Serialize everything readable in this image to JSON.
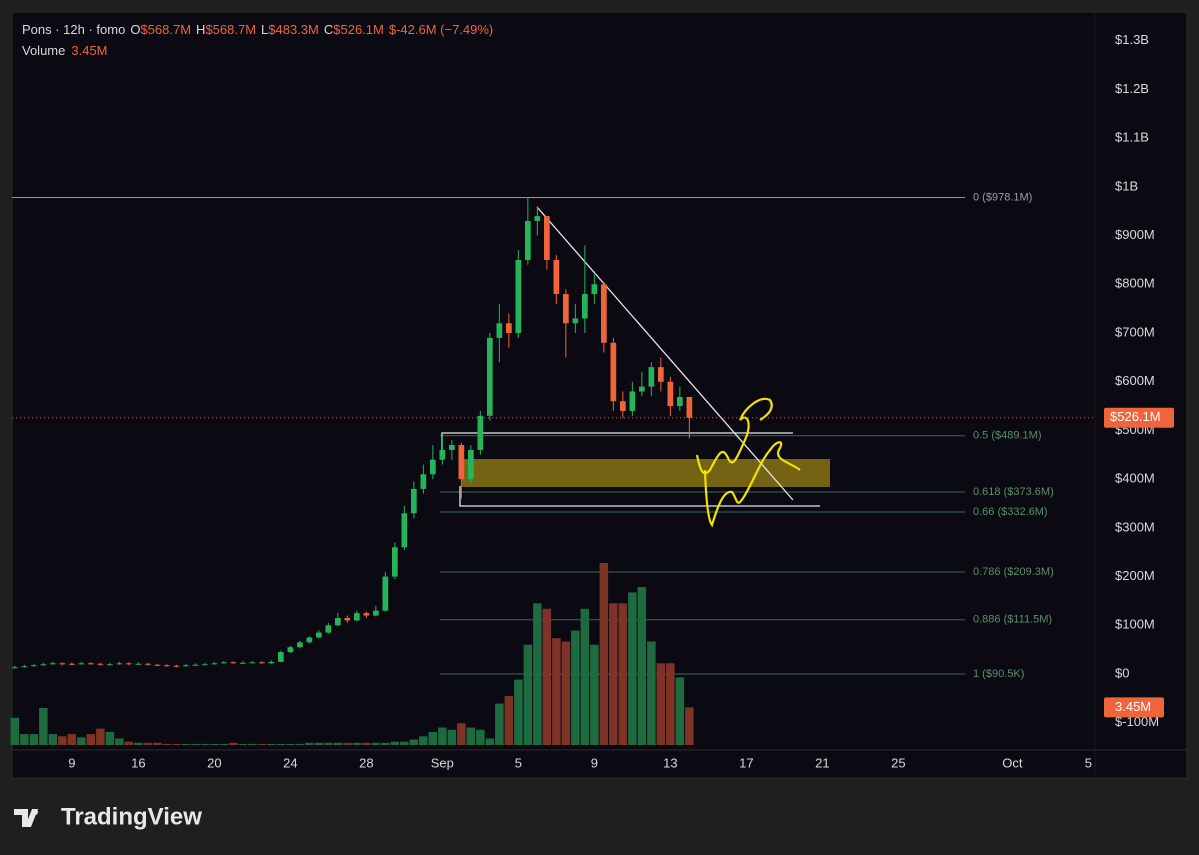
{
  "chart_data": {
    "type": "candlestick",
    "symbol": "Pons · 12h · fomo",
    "legend": {
      "o_label": "O",
      "o": "$568.7M",
      "h_label": "H",
      "h": "$568.7M",
      "l_label": "L",
      "l": "$483.3M",
      "c_label": "C",
      "c": "$526.1M",
      "change": "$-42.6M (−7.49%)",
      "volume_label": "Volume",
      "volume": "3.45M"
    },
    "open": [
      12,
      14,
      16,
      18,
      20,
      22,
      21,
      20,
      22,
      21,
      19,
      20,
      22,
      20,
      21,
      19,
      18,
      17,
      16,
      18,
      19,
      20,
      22,
      24,
      22,
      23,
      24,
      22,
      25,
      45,
      55,
      65,
      75,
      85,
      100,
      115,
      110,
      125,
      120,
      130,
      200,
      260,
      330,
      380,
      410,
      440,
      460,
      470,
      400,
      460,
      530,
      690,
      720,
      700,
      850,
      930,
      940,
      850,
      780,
      720,
      730,
      780,
      800,
      680,
      560,
      540,
      580,
      590,
      630,
      600,
      550,
      568.7
    ],
    "high": [
      17,
      19,
      21,
      23,
      25,
      24,
      24,
      25,
      24,
      23,
      23,
      25,
      24,
      24,
      23,
      21,
      20,
      19,
      21,
      22,
      23,
      25,
      27,
      26,
      26,
      27,
      26,
      28,
      48,
      58,
      68,
      78,
      90,
      105,
      125,
      120,
      130,
      128,
      140,
      210,
      270,
      345,
      395,
      430,
      470,
      490,
      480,
      475,
      470,
      540,
      700,
      760,
      740,
      870,
      978.1,
      960,
      940,
      860,
      790,
      760,
      880,
      820,
      805,
      690,
      580,
      600,
      620,
      640,
      650,
      610,
      590,
      568.7
    ],
    "low": [
      11,
      13,
      15,
      17,
      19,
      18,
      18,
      19,
      19,
      17,
      18,
      19,
      18,
      19,
      17,
      16,
      15,
      14,
      15,
      17,
      18,
      19,
      21,
      21,
      21,
      22,
      21,
      21,
      24,
      43,
      53,
      63,
      73,
      83,
      98,
      105,
      108,
      115,
      118,
      128,
      195,
      255,
      320,
      370,
      400,
      430,
      440,
      360,
      390,
      450,
      520,
      640,
      670,
      690,
      840,
      900,
      830,
      760,
      650,
      700,
      700,
      760,
      660,
      540,
      525,
      530,
      570,
      570,
      580,
      530,
      540,
      483.3
    ],
    "close": [
      14,
      16,
      18,
      20,
      22,
      21,
      20,
      22,
      21,
      19,
      20,
      22,
      20,
      21,
      19,
      18,
      17,
      16,
      18,
      19,
      20,
      22,
      24,
      22,
      23,
      24,
      22,
      25,
      45,
      55,
      65,
      75,
      85,
      100,
      115,
      110,
      125,
      120,
      130,
      200,
      260,
      330,
      380,
      410,
      440,
      460,
      470,
      400,
      460,
      530,
      690,
      720,
      700,
      850,
      930,
      940,
      850,
      780,
      720,
      730,
      780,
      800,
      680,
      560,
      540,
      580,
      590,
      630,
      600,
      550,
      568.7,
      526.1
    ],
    "volume": [
      2.5,
      1,
      1,
      3.4,
      1,
      0.8,
      1,
      0.7,
      1,
      1.5,
      1.2,
      0.6,
      0.3,
      0.2,
      0.2,
      0.2,
      0.1,
      0.1,
      0.1,
      0.1,
      0.1,
      0.1,
      0.1,
      0.2,
      0.1,
      0.1,
      0.1,
      0.1,
      0.1,
      0.1,
      0.1,
      0.2,
      0.2,
      0.2,
      0.2,
      0.2,
      0.2,
      0.2,
      0.2,
      0.2,
      0.3,
      0.3,
      0.5,
      0.8,
      1.2,
      1.6,
      1.4,
      2,
      1.6,
      1.4,
      0.6,
      3.8,
      4.5,
      6,
      9.2,
      13,
      12.5,
      9.8,
      9.5,
      10.5,
      12.5,
      9.2,
      16.7,
      13,
      13,
      14,
      14.5,
      9.5,
      7.5,
      7.5,
      6.2,
      3.45
    ],
    "up_color": "#26b35a",
    "down_color": "#f0643c",
    "vol_up_color": "#1e6b40",
    "vol_down_color": "#7d3325",
    "last_price": {
      "value": 526.1,
      "label": "$526.1M"
    },
    "last_volume": {
      "value": 3.45,
      "label": "3.45M"
    },
    "ylim": [
      -156,
      1359
    ],
    "yticks": [
      {
        "value": 1300,
        "label": "$1.3B"
      },
      {
        "value": 1200,
        "label": "$1.2B"
      },
      {
        "value": 1100,
        "label": "$1.1B"
      },
      {
        "value": 1000,
        "label": "$1B"
      },
      {
        "value": 900,
        "label": "$900M"
      },
      {
        "value": 800,
        "label": "$800M"
      },
      {
        "value": 700,
        "label": "$700M"
      },
      {
        "value": 600,
        "label": "$600M"
      },
      {
        "value": 500,
        "label": "$500M"
      },
      {
        "value": 400,
        "label": "$400M"
      },
      {
        "value": 300,
        "label": "$300M"
      },
      {
        "value": 200,
        "label": "$200M"
      },
      {
        "value": 100,
        "label": "$100M"
      },
      {
        "value": 0,
        "label": "$0"
      },
      {
        "value": -100,
        "label": "$-100M"
      }
    ],
    "xlim": [
      -0.3,
      113.7
    ],
    "xticks": [
      {
        "value": 6,
        "label": "9"
      },
      {
        "value": 13,
        "label": "16"
      },
      {
        "value": 21,
        "label": "20"
      },
      {
        "value": 29,
        "label": "24"
      },
      {
        "value": 37,
        "label": "28"
      },
      {
        "value": 45,
        "label": "Sep"
      },
      {
        "value": 53,
        "label": "5"
      },
      {
        "value": 61,
        "label": "9"
      },
      {
        "value": 69,
        "label": "13"
      },
      {
        "value": 77,
        "label": "17"
      },
      {
        "value": 85,
        "label": "21"
      },
      {
        "value": 93,
        "label": "25"
      },
      {
        "value": 105,
        "label": "Oct"
      },
      {
        "value": 113,
        "label": "5"
      }
    ],
    "fib_levels": [
      {
        "value": 978.1,
        "label": "0 ($978.1M)"
      },
      {
        "value": 489.1,
        "label": "0.5 ($489.1M)"
      },
      {
        "value": 373.6,
        "label": "0.618 ($373.6M)"
      },
      {
        "value": 332.6,
        "label": "0.66 ($332.6M)"
      },
      {
        "value": 209.3,
        "label": "0.786 ($209.3M)"
      },
      {
        "value": 111.5,
        "label": "0.886 ($111.5M)"
      },
      {
        "value": 0.09,
        "label": "1 ($90.5K)"
      }
    ]
  },
  "brand": "TradingView"
}
